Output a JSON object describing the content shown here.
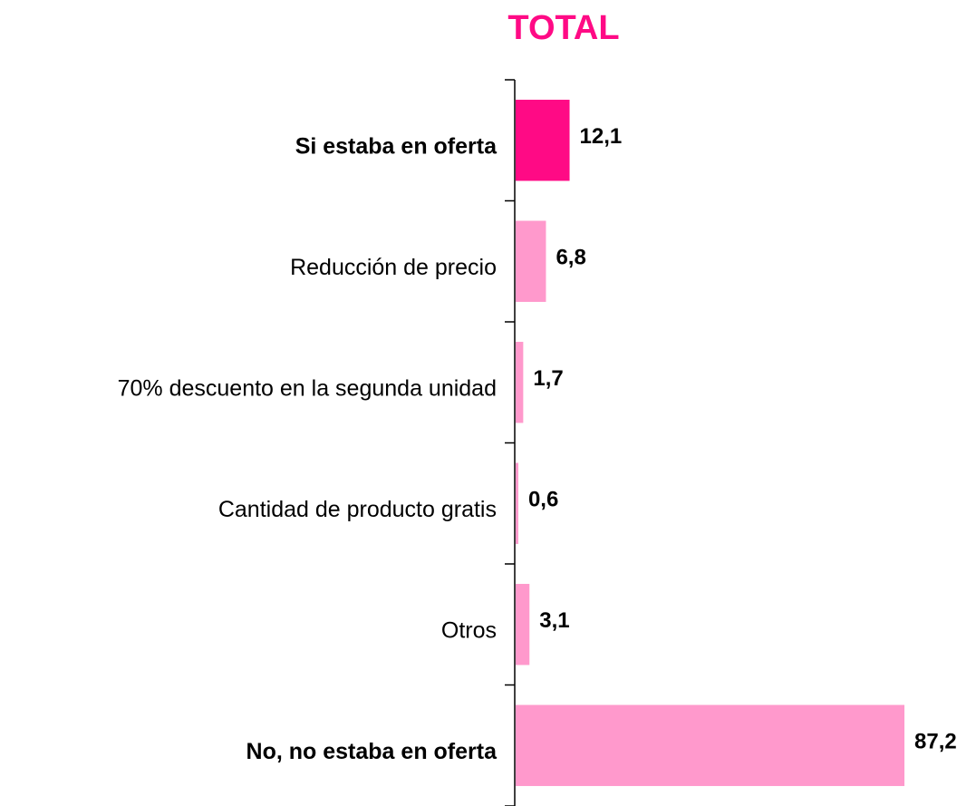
{
  "chart_data": {
    "type": "barh",
    "title": "TOTAL",
    "title_color": "#ff0a85",
    "categories": [
      "Si estaba en oferta",
      "Reducción de precio",
      "70% descuento en la segunda unidad",
      "Cantidad de producto gratis",
      "Otros",
      "No, no estaba en oferta"
    ],
    "values": [
      12.1,
      6.8,
      1.7,
      0.6,
      3.1,
      87.2
    ],
    "value_labels": [
      "12,1",
      "6,8",
      "1,7",
      "0,6",
      "3,1",
      "87,2"
    ],
    "colors": [
      "#ff0a85",
      "#ff99cc",
      "#ff99cc",
      "#ff99cc",
      "#ff99cc",
      "#ff99cc"
    ],
    "bold": [
      true,
      false,
      false,
      false,
      false,
      true
    ]
  }
}
